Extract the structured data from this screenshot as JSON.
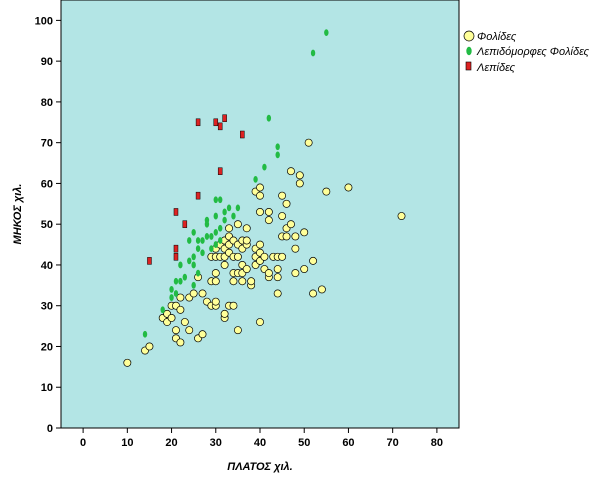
{
  "chart_data": {
    "type": "scatter",
    "xlabel": "ΠΛΑΤΟΣ χιλ.",
    "ylabel": "ΜΗΚΟΣ χιλ.",
    "xlim": [
      -5,
      85
    ],
    "ylim": [
      0,
      105
    ],
    "xticks": [
      0,
      10,
      20,
      30,
      40,
      50,
      60,
      70,
      80
    ],
    "yticks": [
      0,
      10,
      20,
      30,
      40,
      50,
      60,
      70,
      80,
      90,
      100
    ],
    "grid": false,
    "background": "#b3e5e5",
    "legend_position": "right",
    "series": [
      {
        "name": "Φολίδες",
        "marker": "circle",
        "color": "#ffff99",
        "points": [
          [
            10,
            16
          ],
          [
            14,
            19
          ],
          [
            15,
            20
          ],
          [
            18,
            27
          ],
          [
            19,
            26
          ],
          [
            19,
            28
          ],
          [
            20,
            27
          ],
          [
            20,
            30
          ],
          [
            21,
            22
          ],
          [
            21,
            24
          ],
          [
            21,
            30
          ],
          [
            22,
            21
          ],
          [
            22,
            29
          ],
          [
            22,
            32
          ],
          [
            23,
            26
          ],
          [
            24,
            24
          ],
          [
            24,
            32
          ],
          [
            25,
            33
          ],
          [
            26,
            22
          ],
          [
            26,
            37
          ],
          [
            27,
            23
          ],
          [
            27,
            33
          ],
          [
            28,
            31
          ],
          [
            29,
            30
          ],
          [
            29,
            36
          ],
          [
            29,
            42
          ],
          [
            30,
            30
          ],
          [
            30,
            31
          ],
          [
            30,
            36
          ],
          [
            30,
            38
          ],
          [
            30,
            42
          ],
          [
            30,
            44
          ],
          [
            31,
            42
          ],
          [
            31,
            45
          ],
          [
            32,
            27
          ],
          [
            32,
            28
          ],
          [
            32,
            40
          ],
          [
            32,
            42
          ],
          [
            32,
            44
          ],
          [
            32,
            46
          ],
          [
            33,
            30
          ],
          [
            33,
            43
          ],
          [
            33,
            45
          ],
          [
            33,
            47
          ],
          [
            33,
            49
          ],
          [
            34,
            30
          ],
          [
            34,
            36
          ],
          [
            34,
            38
          ],
          [
            34,
            42
          ],
          [
            34,
            46
          ],
          [
            35,
            24
          ],
          [
            35,
            38
          ],
          [
            35,
            42
          ],
          [
            35,
            45
          ],
          [
            35,
            50
          ],
          [
            36,
            36
          ],
          [
            36,
            38
          ],
          [
            36,
            40
          ],
          [
            36,
            44
          ],
          [
            36,
            46
          ],
          [
            37,
            39
          ],
          [
            37,
            45
          ],
          [
            37,
            46
          ],
          [
            37,
            49
          ],
          [
            38,
            35
          ],
          [
            38,
            36
          ],
          [
            39,
            40
          ],
          [
            39,
            42
          ],
          [
            39,
            44
          ],
          [
            39,
            58
          ],
          [
            40,
            26
          ],
          [
            40,
            41
          ],
          [
            40,
            43
          ],
          [
            40,
            45
          ],
          [
            40,
            53
          ],
          [
            40,
            57
          ],
          [
            40,
            59
          ],
          [
            41,
            39
          ],
          [
            41,
            42
          ],
          [
            42,
            37
          ],
          [
            42,
            38
          ],
          [
            42,
            51
          ],
          [
            42,
            53
          ],
          [
            43,
            42
          ],
          [
            44,
            33
          ],
          [
            44,
            37
          ],
          [
            44,
            39
          ],
          [
            44,
            42
          ],
          [
            45,
            42
          ],
          [
            45,
            47
          ],
          [
            45,
            52
          ],
          [
            45,
            57
          ],
          [
            46,
            47
          ],
          [
            46,
            49
          ],
          [
            46,
            55
          ],
          [
            47,
            50
          ],
          [
            47,
            63
          ],
          [
            48,
            38
          ],
          [
            48,
            44
          ],
          [
            48,
            47
          ],
          [
            49,
            60
          ],
          [
            49,
            62
          ],
          [
            50,
            39
          ],
          [
            50,
            48
          ],
          [
            51,
            70
          ],
          [
            52,
            33
          ],
          [
            52,
            41
          ],
          [
            54,
            34
          ],
          [
            55,
            58
          ],
          [
            60,
            59
          ],
          [
            72,
            52
          ]
        ]
      },
      {
        "name": "Λεπιδόμορφες Φολίδες",
        "marker": "ellipse",
        "color": "#22bb44",
        "points": [
          [
            14,
            23
          ],
          [
            18,
            29
          ],
          [
            20,
            32
          ],
          [
            20,
            34
          ],
          [
            21,
            33
          ],
          [
            21,
            36
          ],
          [
            22,
            36
          ],
          [
            22,
            40
          ],
          [
            23,
            37
          ],
          [
            24,
            41
          ],
          [
            24,
            46
          ],
          [
            25,
            35
          ],
          [
            25,
            40
          ],
          [
            25,
            42
          ],
          [
            25,
            48
          ],
          [
            26,
            38
          ],
          [
            26,
            44
          ],
          [
            26,
            46
          ],
          [
            27,
            43
          ],
          [
            27,
            46
          ],
          [
            28,
            47
          ],
          [
            28,
            50
          ],
          [
            28,
            51
          ],
          [
            29,
            44
          ],
          [
            29,
            47
          ],
          [
            30,
            45
          ],
          [
            30,
            48
          ],
          [
            30,
            52
          ],
          [
            30,
            56
          ],
          [
            31,
            46
          ],
          [
            31,
            49
          ],
          [
            31,
            56
          ],
          [
            32,
            51
          ],
          [
            32,
            53
          ],
          [
            33,
            54
          ],
          [
            34,
            52
          ],
          [
            35,
            54
          ],
          [
            39,
            61
          ],
          [
            41,
            64
          ],
          [
            42,
            76
          ],
          [
            44,
            67
          ],
          [
            44,
            69
          ],
          [
            52,
            92
          ],
          [
            55,
            97
          ]
        ]
      },
      {
        "name": "Λεπίδες",
        "marker": "rect",
        "color": "#dd2222",
        "points": [
          [
            15,
            41
          ],
          [
            21,
            42
          ],
          [
            21,
            44
          ],
          [
            21,
            53
          ],
          [
            23,
            50
          ],
          [
            26,
            57
          ],
          [
            26,
            75
          ],
          [
            30,
            75
          ],
          [
            31,
            63
          ],
          [
            31,
            74
          ],
          [
            32,
            76
          ],
          [
            36,
            72
          ]
        ]
      }
    ]
  }
}
